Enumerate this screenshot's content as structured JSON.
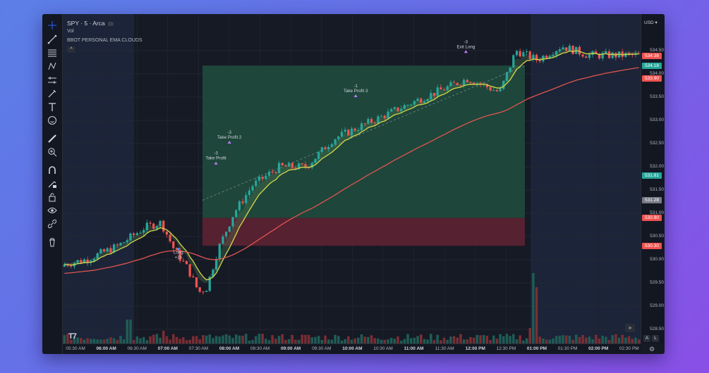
{
  "header": {
    "symbol": "SPY · 5 · Arca",
    "indicator_vol": "Vol",
    "indicator_ema": "BBOT PERSONAL EMA CLOUDS",
    "collapse": "^"
  },
  "currency": "USD",
  "price_axis": {
    "labels": [
      "534.50",
      "534.00",
      "533.50",
      "533.00",
      "532.50",
      "532.00",
      "531.50",
      "531.00",
      "530.50",
      "530.00",
      "529.50",
      "529.00",
      "528.50"
    ],
    "badges": [
      {
        "value": "534.38",
        "color": "#ef5350"
      },
      {
        "value": "534.18",
        "color": "#26a69a"
      },
      {
        "value": "533.90",
        "color": "#ef5350"
      },
      {
        "value": "531.81",
        "color": "#26a69a"
      },
      {
        "value": "531.28",
        "color": "#787b86"
      },
      {
        "value": "530.90",
        "color": "#ef5350"
      },
      {
        "value": "530.30",
        "color": "#ef5350"
      }
    ]
  },
  "time_axis": [
    {
      "t": "05:30 AM",
      "bold": false
    },
    {
      "t": "06:00 AM",
      "bold": true
    },
    {
      "t": "06:30 AM",
      "bold": false
    },
    {
      "t": "07:00 AM",
      "bold": true
    },
    {
      "t": "07:30 AM",
      "bold": false
    },
    {
      "t": "08:00 AM",
      "bold": true
    },
    {
      "t": "08:30 AM",
      "bold": false
    },
    {
      "t": "09:00 AM",
      "bold": true
    },
    {
      "t": "09:30 AM",
      "bold": false
    },
    {
      "t": "10:00 AM",
      "bold": true
    },
    {
      "t": "10:30 AM",
      "bold": false
    },
    {
      "t": "11:00 AM",
      "bold": true
    },
    {
      "t": "11:30 AM",
      "bold": false
    },
    {
      "t": "12:00 PM",
      "bold": true
    },
    {
      "t": "12:30 PM",
      "bold": false
    },
    {
      "t": "01:00 PM",
      "bold": true
    },
    {
      "t": "01:30 PM",
      "bold": false
    },
    {
      "t": "02:00 PM",
      "bold": true
    },
    {
      "t": "02:30 PM",
      "bold": false
    }
  ],
  "trades": [
    {
      "label": "Long",
      "qty": "+15"
    },
    {
      "label": "Take Profit",
      "qty": "-3"
    },
    {
      "label": "Take Profit 2",
      "qty": "-3"
    },
    {
      "label": "Take Profit 3",
      "qty": "-1"
    },
    {
      "label": "Exit Long",
      "qty": "-3"
    }
  ],
  "scale_buttons": {
    "auto": "A",
    "log": "L"
  },
  "icons": [
    "crosshair-icon",
    "trendline-icon",
    "fib-icon",
    "pattern-icon",
    "measure-icon",
    "brush-icon",
    "text-icon",
    "emoji-icon",
    "ruler-icon",
    "zoom-icon",
    "magnet-icon",
    "lock-draw-icon",
    "lock-icon",
    "eye-icon",
    "link-icon",
    "trash-icon"
  ],
  "colors": {
    "up": "#26a69a",
    "down": "#ef5350",
    "ema_fast": "#d4d84a",
    "ema_slow": "#e0554f",
    "profit_zone": "#1f4a3d",
    "loss_zone": "#5a2231"
  }
}
